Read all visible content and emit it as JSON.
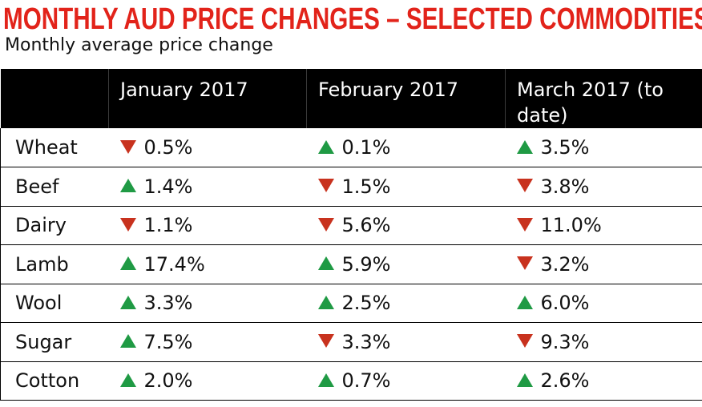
{
  "title": "MONTHLY AUD PRICE CHANGES – SELECTED COMMODITIES",
  "subtitle": "Monthly average price change",
  "colors": {
    "title": "#e2231a",
    "up": "#1f9a44",
    "down": "#c8321e",
    "header_bg": "#000000"
  },
  "chart_data": {
    "type": "table",
    "title": "MONTHLY AUD PRICE CHANGES – SELECTED COMMODITIES",
    "subtitle": "Monthly average price change",
    "columns": [
      "",
      "January 2017",
      "February 2017",
      "March 2017 (to date)"
    ],
    "rows": [
      {
        "label": "Wheat",
        "cells": [
          {
            "dir": "down",
            "text": "0.5%"
          },
          {
            "dir": "up",
            "text": "0.1%"
          },
          {
            "dir": "up",
            "text": "3.5%"
          }
        ]
      },
      {
        "label": "Beef",
        "cells": [
          {
            "dir": "up",
            "text": "1.4%"
          },
          {
            "dir": "down",
            "text": "1.5%"
          },
          {
            "dir": "down",
            "text": "3.8%"
          }
        ]
      },
      {
        "label": "Dairy",
        "cells": [
          {
            "dir": "down",
            "text": "1.1%"
          },
          {
            "dir": "down",
            "text": "5.6%"
          },
          {
            "dir": "down",
            "text": "11.0%"
          }
        ]
      },
      {
        "label": "Lamb",
        "cells": [
          {
            "dir": "up",
            "text": "17.4%"
          },
          {
            "dir": "up",
            "text": "5.9%"
          },
          {
            "dir": "down",
            "text": "3.2%"
          }
        ]
      },
      {
        "label": "Wool",
        "cells": [
          {
            "dir": "up",
            "text": "3.3%"
          },
          {
            "dir": "up",
            "text": "2.5%"
          },
          {
            "dir": "up",
            "text": "6.0%"
          }
        ]
      },
      {
        "label": "Sugar",
        "cells": [
          {
            "dir": "up",
            "text": "7.5%"
          },
          {
            "dir": "down",
            "text": "3.3%"
          },
          {
            "dir": "down",
            "text": "9.3%"
          }
        ]
      },
      {
        "label": "Cotton",
        "cells": [
          {
            "dir": "up",
            "text": "2.0%"
          },
          {
            "dir": "up",
            "text": "0.7%"
          },
          {
            "dir": "up",
            "text": "2.6%"
          }
        ]
      }
    ]
  }
}
